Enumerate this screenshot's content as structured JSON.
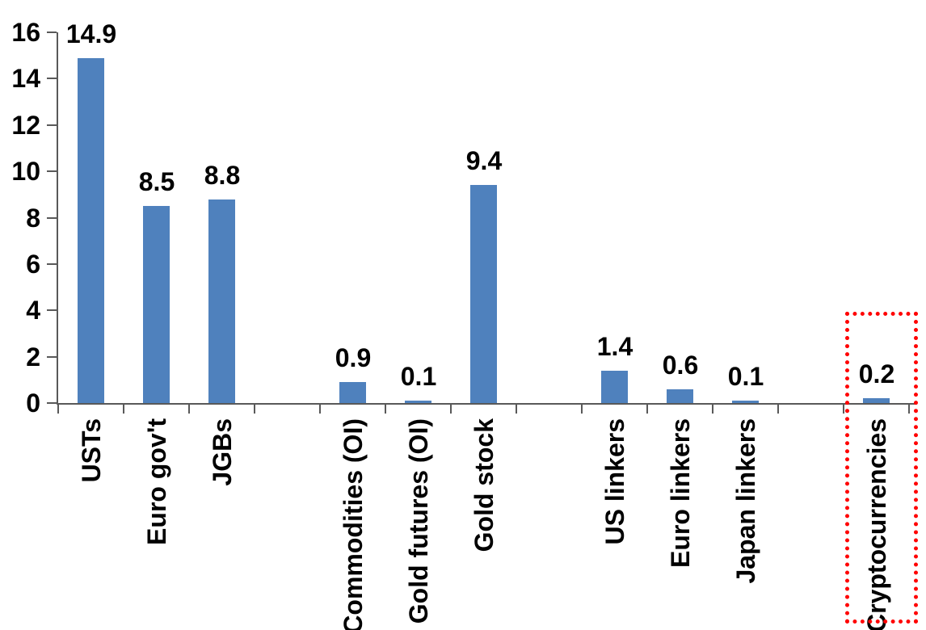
{
  "chart_data": {
    "type": "bar",
    "title": "",
    "xlabel": "",
    "ylabel": "",
    "categories": [
      "USTs",
      "Euro gov't",
      "JGBs",
      "",
      "Commodities (OI)",
      "Gold futures (OI)",
      "Gold stock",
      "",
      "US linkers",
      "Euro linkers",
      "Japan linkers",
      "",
      "Cryptocurrencies"
    ],
    "values": [
      14.9,
      8.5,
      8.8,
      null,
      0.9,
      0.1,
      9.4,
      null,
      1.4,
      0.6,
      0.1,
      null,
      0.2
    ],
    "value_labels": [
      "14.9",
      "8.5",
      "8.8",
      "",
      "0.9",
      "0.1",
      "9.4",
      "",
      "1.4",
      "0.6",
      "0.1",
      "",
      "0.2"
    ],
    "ylim": [
      0,
      16
    ],
    "yticks": [
      0,
      2,
      4,
      6,
      8,
      10,
      12,
      14,
      16
    ],
    "ytick_labels": [
      "0",
      "2",
      "4",
      "6",
      "8",
      "10",
      "12",
      "14",
      "16"
    ],
    "grid": false,
    "legend": false,
    "x_label_rotation_deg": 90,
    "bar_color": "#4F81BD",
    "axis_color": "#595959",
    "text_color": "#000000",
    "highlight": {
      "target": "Cryptocurrencies",
      "shape": "dotted-rectangle",
      "color": "#FF0000"
    }
  }
}
